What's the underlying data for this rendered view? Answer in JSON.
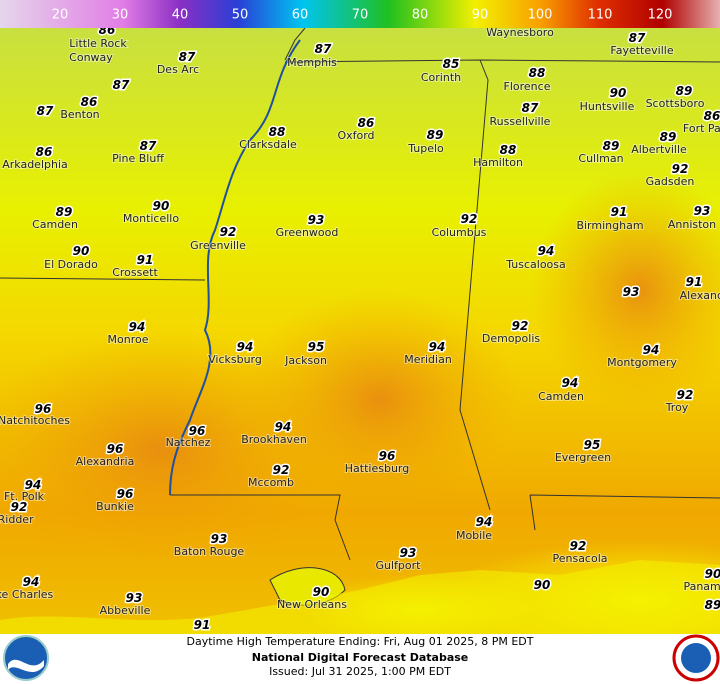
{
  "legend": {
    "labels": [
      20,
      30,
      40,
      50,
      60,
      70,
      80,
      90,
      100,
      110,
      120
    ]
  },
  "places": [
    {
      "name": "Fayetteville",
      "value": 87
    },
    {
      "name": "Little Rock",
      "value": 86
    },
    {
      "name": "Des Arc",
      "value": 87
    },
    {
      "name": "Memphis",
      "value": 87
    },
    {
      "name": "Corinth",
      "value": 85
    },
    {
      "name": "Florence",
      "value": 88
    },
    {
      "name": "Huntsville",
      "value": 90
    },
    {
      "name": "Scottsboro",
      "value": 89
    },
    {
      "name": "Fort Payne",
      "value": 86
    },
    {
      "name": "Benton",
      "value": 86
    },
    {
      "name": "Russellville",
      "value": 87
    },
    {
      "name": "Oxford",
      "value": 86
    },
    {
      "name": "Clarksdale",
      "value": 88
    },
    {
      "name": "Tupelo",
      "value": 89
    },
    {
      "name": "Albertville",
      "value": 89
    },
    {
      "name": "Cullman",
      "value": 89
    },
    {
      "name": "Hamilton",
      "value": 88
    },
    {
      "name": "Pine Bluff",
      "value": 87
    },
    {
      "name": "Arkadelphia",
      "value": 86
    },
    {
      "name": "Gadsden",
      "value": 92
    },
    {
      "name": "Camden",
      "value": 89
    },
    {
      "name": "Monticello",
      "value": 90
    },
    {
      "name": "Birmingham",
      "value": 91
    },
    {
      "name": "Anniston",
      "value": 93
    },
    {
      "name": "Greenwood",
      "value": 93
    },
    {
      "name": "Columbus",
      "value": 92
    },
    {
      "name": "Greenville",
      "value": 92
    },
    {
      "name": "El Dorado",
      "value": 90
    },
    {
      "name": "Crossett",
      "value": 91
    },
    {
      "name": "Tuscaloosa",
      "value": 94
    },
    {
      "name": "Alexander City",
      "value": 91
    },
    {
      "name": "Monroe",
      "value": 94
    },
    {
      "name": "Demopolis",
      "value": 92
    },
    {
      "name": "Vicksburg",
      "value": 94
    },
    {
      "name": "Jackson",
      "value": 95
    },
    {
      "name": "Meridian",
      "value": 94
    },
    {
      "name": "Montgomery",
      "value": 94
    },
    {
      "name": "Camden",
      "value": 94
    },
    {
      "name": "Natchitoches",
      "value": 96
    },
    {
      "name": "Troy",
      "value": 92
    },
    {
      "name": "Natchez",
      "value": 96
    },
    {
      "name": "Brookhaven",
      "value": 94
    },
    {
      "name": "Alexandria",
      "value": 96
    },
    {
      "name": "Evergreen",
      "value": 95
    },
    {
      "name": "Hattiesburg",
      "value": 96
    },
    {
      "name": "Mccomb",
      "value": 92
    },
    {
      "name": "Ft. Polk",
      "value": 94
    },
    {
      "name": "Bunkie",
      "value": 96
    },
    {
      "name": "DeRidder",
      "value": 92
    },
    {
      "name": "Mobile",
      "value": 94
    },
    {
      "name": "Baton Rouge",
      "value": 93
    },
    {
      "name": "Gulfport",
      "value": 93
    },
    {
      "name": "Pensacola",
      "value": 92
    },
    {
      "name": "Lake Charles",
      "value": 94
    },
    {
      "name": "New Orleans",
      "value": 90
    },
    {
      "name": "Panama City",
      "value": 90
    },
    {
      "name": "Abbeville",
      "value": 93
    }
  ],
  "names_only": [
    "Waynesboro",
    "Conway"
  ],
  "values_only": [
    87,
    87,
    93,
    90,
    89,
    91
  ],
  "footer": {
    "line1": "Daytime High Temperature Ending: Fri, Aug 01 2025, 8 PM EDT",
    "line2": "National Digital Forecast Database",
    "line3": "Issued: Jul 31 2025, 1:00 PM EDT"
  }
}
